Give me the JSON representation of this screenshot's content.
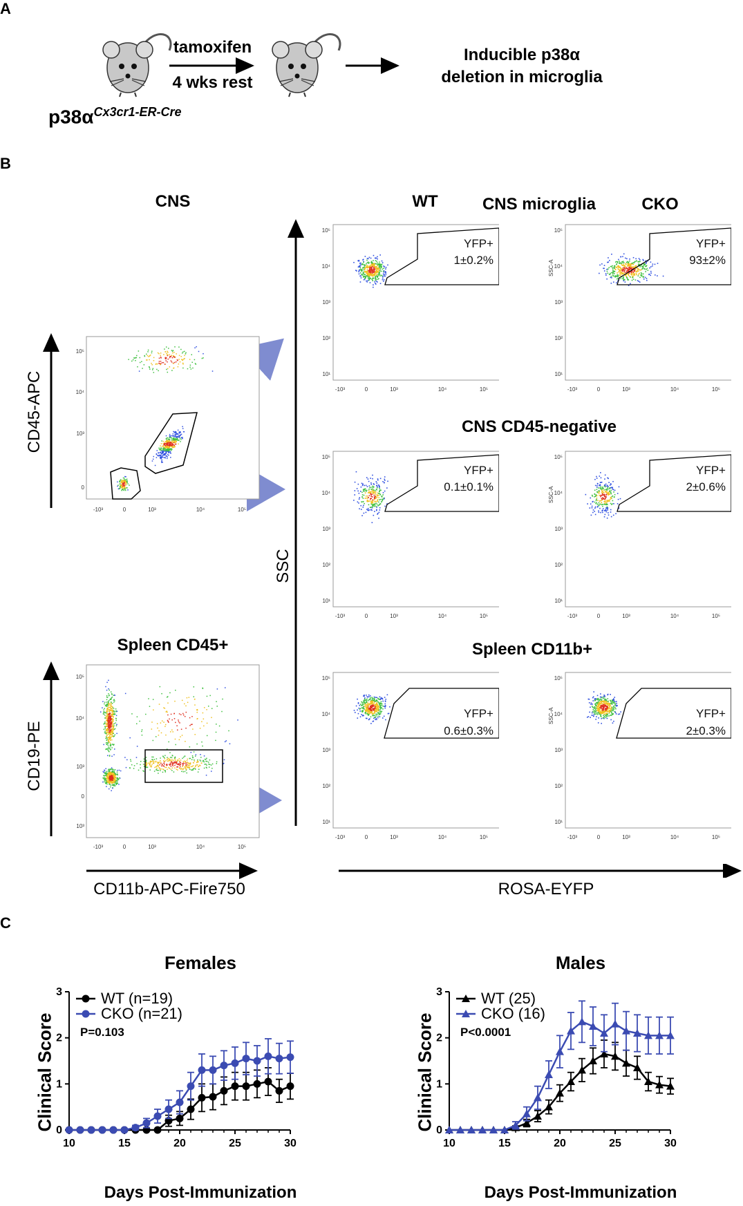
{
  "panel_a": {
    "letter": "A",
    "arrow_top": "tamoxifen",
    "arrow_bottom": "4 wks rest",
    "genotype_base": "p38α",
    "genotype_super": "Cx3cr1-ER-Cre",
    "result_line1": "Inducible p38α",
    "result_line2": "deletion in microglia"
  },
  "panel_b": {
    "letter": "B",
    "cns_title": "CNS",
    "spleen_title": "Spleen CD45+",
    "y_cns": "CD45-APC",
    "y_spleen": "CD19-PE",
    "x_left": "CD11b-APC-Fire750",
    "y_ssc": "SSC",
    "x_right": "ROSA-EYFP",
    "col_wt": "WT",
    "col_cko": "CKO",
    "row1_title": "CNS microglia",
    "row2_title": "CNS CD45-negative",
    "row3_title": "Spleen CD11b+",
    "gate_label": "YFP+",
    "ssc_small": "SSC-A",
    "yticks": [
      "10⁵",
      "10⁴",
      "10³",
      "10²",
      "10¹"
    ],
    "xticks": [
      "-10³",
      "0",
      "10³",
      "10⁴",
      "10⁵"
    ],
    "ticks_cns_y": [
      "10⁵",
      "10⁴",
      "10³",
      "0"
    ],
    "ticks_spleen_y": [
      "10⁵",
      "10⁴",
      "10³",
      "0",
      "-10³"
    ],
    "values": {
      "r1_wt": "1±0.2%",
      "r1_cko": "93±2%",
      "r2_wt": "0.1±0.1%",
      "r2_cko": "2±0.6%",
      "r3_wt": "0.6±0.3%",
      "r3_cko": "2±0.3%"
    }
  },
  "panel_c": {
    "letter": "C",
    "colors": {
      "wt": "#000000",
      "cko": "#3b4bb2"
    },
    "chart_data": [
      {
        "type": "line",
        "title": "Females",
        "xlabel": "Days Post-Immunization",
        "ylabel": "Clinical Score",
        "xlim": [
          10,
          30
        ],
        "ylim": [
          0,
          3
        ],
        "xticks": [
          10,
          15,
          20,
          25,
          30
        ],
        "yticks": [
          0,
          1,
          2,
          3
        ],
        "pvalue": "P=0.103",
        "marker": "circle",
        "x": [
          10,
          11,
          12,
          13,
          14,
          15,
          16,
          17,
          18,
          19,
          20,
          21,
          22,
          23,
          24,
          25,
          26,
          27,
          28,
          29,
          30
        ],
        "series": [
          {
            "name": "WT (n=19)",
            "key": "wt",
            "values": [
              0,
              0,
              0,
              0,
              0,
              0,
              0,
              0,
              0,
              0.2,
              0.25,
              0.45,
              0.7,
              0.72,
              0.85,
              0.95,
              0.95,
              1.0,
              1.05,
              0.85,
              0.95
            ],
            "errors": [
              0,
              0,
              0,
              0,
              0,
              0,
              0,
              0,
              0,
              0.12,
              0.15,
              0.22,
              0.3,
              0.28,
              0.3,
              0.3,
              0.3,
              0.3,
              0.3,
              0.25,
              0.28
            ]
          },
          {
            "name": "CKO (n=21)",
            "key": "cko",
            "values": [
              0,
              0,
              0,
              0,
              0,
              0,
              0.05,
              0.15,
              0.3,
              0.45,
              0.6,
              0.95,
              1.3,
              1.3,
              1.4,
              1.45,
              1.55,
              1.5,
              1.6,
              1.55,
              1.58
            ],
            "errors": [
              0,
              0,
              0,
              0,
              0,
              0,
              0.05,
              0.1,
              0.15,
              0.2,
              0.25,
              0.3,
              0.35,
              0.3,
              0.32,
              0.35,
              0.35,
              0.33,
              0.38,
              0.33,
              0.35
            ]
          }
        ]
      },
      {
        "type": "line",
        "title": "Males",
        "xlabel": "Days Post-Immunization",
        "ylabel": "Clinical Score",
        "xlim": [
          10,
          30
        ],
        "ylim": [
          0,
          3
        ],
        "xticks": [
          10,
          15,
          20,
          25,
          30
        ],
        "yticks": [
          0,
          1,
          2,
          3
        ],
        "pvalue": "P<0.0001",
        "marker": "triangle",
        "x": [
          10,
          11,
          12,
          13,
          14,
          15,
          16,
          17,
          18,
          19,
          20,
          21,
          22,
          23,
          24,
          25,
          26,
          27,
          28,
          29,
          30
        ],
        "series": [
          {
            "name": "WT (25)",
            "key": "wt",
            "values": [
              0,
              0,
              0,
              0,
              0,
              0,
              0.05,
              0.15,
              0.3,
              0.5,
              0.8,
              1.05,
              1.3,
              1.5,
              1.65,
              1.6,
              1.45,
              1.35,
              1.05,
              0.98,
              0.95
            ],
            "errors": [
              0,
              0,
              0,
              0,
              0,
              0,
              0.04,
              0.08,
              0.12,
              0.15,
              0.18,
              0.2,
              0.25,
              0.28,
              0.3,
              0.3,
              0.28,
              0.25,
              0.2,
              0.18,
              0.17
            ]
          },
          {
            "name": "CKO (16)",
            "key": "cko",
            "values": [
              0,
              0,
              0,
              0,
              0,
              0,
              0.1,
              0.35,
              0.7,
              1.2,
              1.7,
              2.15,
              2.35,
              2.25,
              2.1,
              2.3,
              2.15,
              2.1,
              2.05,
              2.05,
              2.05
            ],
            "errors": [
              0,
              0,
              0,
              0,
              0,
              0,
              0.08,
              0.15,
              0.25,
              0.3,
              0.35,
              0.4,
              0.45,
              0.42,
              0.4,
              0.45,
              0.42,
              0.4,
              0.4,
              0.4,
              0.4
            ]
          }
        ]
      }
    ]
  }
}
